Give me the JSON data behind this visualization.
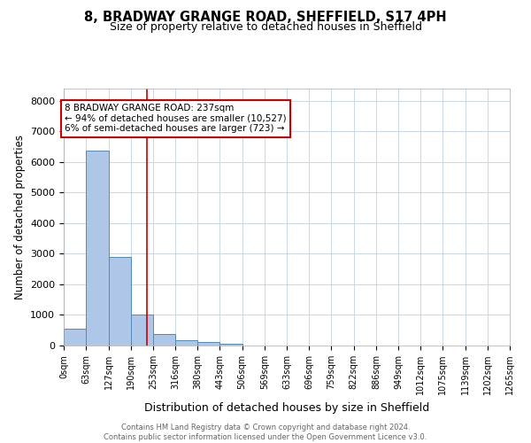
{
  "title": "8, BRADWAY GRANGE ROAD, SHEFFIELD, S17 4PH",
  "subtitle": "Size of property relative to detached houses in Sheffield",
  "xlabel": "Distribution of detached houses by size in Sheffield",
  "ylabel": "Number of detached properties",
  "bar_edges": [
    0,
    63,
    127,
    190,
    253,
    316,
    380,
    443,
    506,
    569,
    633,
    696,
    759,
    822,
    886,
    949,
    1012,
    1075,
    1139,
    1202,
    1265
  ],
  "bar_heights": [
    560,
    6370,
    2910,
    1005,
    385,
    175,
    110,
    65,
    0,
    0,
    0,
    0,
    0,
    0,
    0,
    0,
    0,
    0,
    0,
    0
  ],
  "bar_color": "#aec6e8",
  "bar_edge_color": "#5589b8",
  "property_line_x": 237,
  "property_line_color": "#cc0000",
  "annotation_text": "8 BRADWAY GRANGE ROAD: 237sqm\n← 94% of detached houses are smaller (10,527)\n6% of semi-detached houses are larger (723) →",
  "annotation_box_color": "#cc0000",
  "ylim": [
    0,
    8400
  ],
  "yticks": [
    0,
    1000,
    2000,
    3000,
    4000,
    5000,
    6000,
    7000,
    8000
  ],
  "tick_labels": [
    "0sqm",
    "63sqm",
    "127sqm",
    "190sqm",
    "253sqm",
    "316sqm",
    "380sqm",
    "443sqm",
    "506sqm",
    "569sqm",
    "633sqm",
    "696sqm",
    "759sqm",
    "822sqm",
    "886sqm",
    "949sqm",
    "1012sqm",
    "1075sqm",
    "1139sqm",
    "1202sqm",
    "1265sqm"
  ],
  "footer_text": "Contains HM Land Registry data © Crown copyright and database right 2024.\nContains public sector information licensed under the Open Government Licence v3.0.",
  "background_color": "#ffffff",
  "grid_color": "#c8d8e8",
  "title_fontsize": 10.5,
  "subtitle_fontsize": 9,
  "ylabel_fontsize": 8.5,
  "xlabel_fontsize": 9,
  "tick_fontsize": 7,
  "footer_fontsize": 6,
  "annotation_fontsize": 7.5
}
